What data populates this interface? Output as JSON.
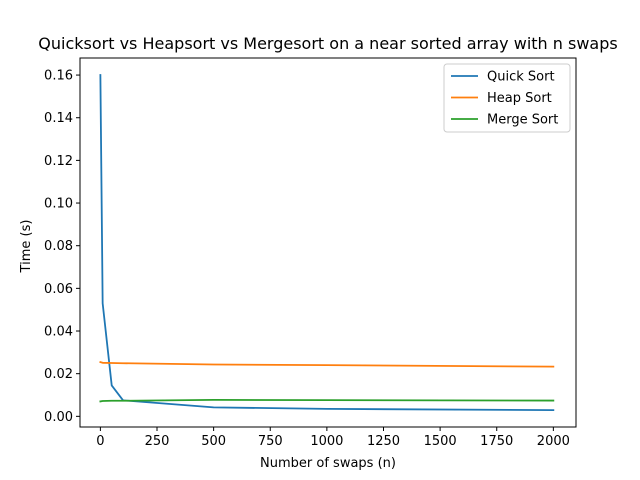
{
  "chart_data": {
    "type": "line",
    "title": "Quicksort vs Heapsort vs Mergesort on a near sorted array with n swaps",
    "xlabel": "Number of swaps (n)",
    "ylabel": "Time (s)",
    "xlim": [
      -90,
      2100
    ],
    "ylim": [
      -0.005,
      0.168
    ],
    "x_ticks": [
      0,
      250,
      500,
      750,
      1000,
      1250,
      1500,
      1750,
      2000
    ],
    "x_tick_labels": [
      "0",
      "250",
      "500",
      "750",
      "1000",
      "1250",
      "1500",
      "1750",
      "2000"
    ],
    "y_ticks": [
      0.0,
      0.02,
      0.04,
      0.06,
      0.08,
      0.1,
      0.12,
      0.14,
      0.16
    ],
    "y_tick_labels": [
      "0.00",
      "0.02",
      "0.04",
      "0.06",
      "0.08",
      "0.10",
      "0.12",
      "0.14",
      "0.16"
    ],
    "grid": false,
    "legend_position": "top-right",
    "series": [
      {
        "name": "Quick Sort",
        "color": "#1f77b4",
        "x": [
          0,
          10,
          50,
          100,
          500,
          1000,
          2000
        ],
        "y": [
          0.16,
          0.053,
          0.0145,
          0.0075,
          0.0042,
          0.0035,
          0.0029
        ]
      },
      {
        "name": "Heap Sort",
        "color": "#ff7f0e",
        "x": [
          0,
          10,
          50,
          100,
          500,
          1000,
          2000
        ],
        "y": [
          0.0254,
          0.0251,
          0.025,
          0.0249,
          0.0243,
          0.024,
          0.0233
        ]
      },
      {
        "name": "Merge Sort",
        "color": "#2ca02c",
        "x": [
          0,
          10,
          50,
          100,
          500,
          1000,
          2000
        ],
        "y": [
          0.007,
          0.0072,
          0.0073,
          0.0073,
          0.0077,
          0.0076,
          0.0074
        ]
      }
    ]
  }
}
